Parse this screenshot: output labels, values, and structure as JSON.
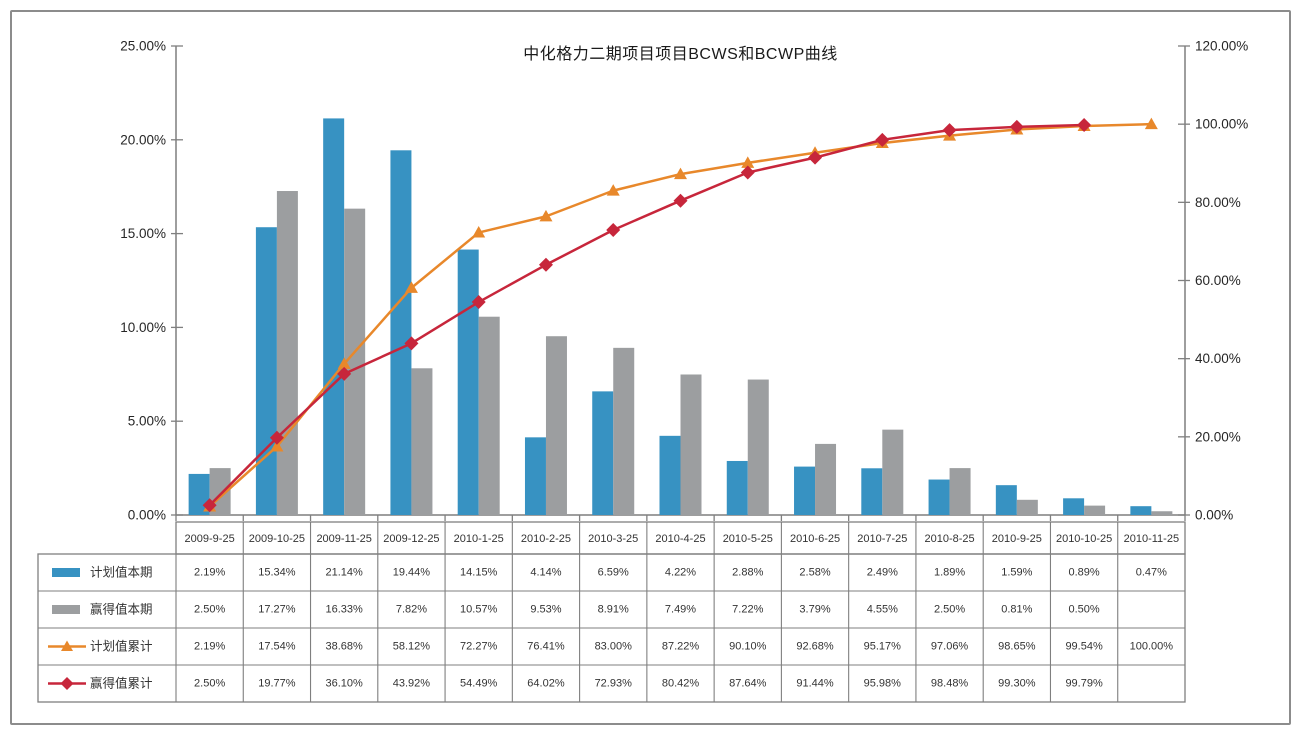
{
  "chart_data": {
    "type": "combo",
    "title": "中化格力二期项目项目BCWS和BCWP曲线",
    "categories": [
      "2009-9-25",
      "2009-10-25",
      "2009-11-25",
      "2009-12-25",
      "2010-1-25",
      "2010-2-25",
      "2010-3-25",
      "2010-4-25",
      "2010-5-25",
      "2010-6-25",
      "2010-7-25",
      "2010-8-25",
      "2010-9-25",
      "2010-10-25",
      "2010-11-25"
    ],
    "series": [
      {
        "key": "planned-current",
        "name": "计划值本期",
        "type": "bar",
        "axis": "left",
        "color": "#3792C2",
        "values": [
          2.19,
          15.34,
          21.14,
          19.44,
          14.15,
          4.14,
          6.59,
          4.22,
          2.88,
          2.58,
          2.49,
          1.89,
          1.59,
          0.89,
          0.47
        ],
        "labels": [
          "2.19%",
          "15.34%",
          "21.14%",
          "19.44%",
          "14.15%",
          "4.14%",
          "6.59%",
          "4.22%",
          "2.88%",
          "2.58%",
          "2.49%",
          "1.89%",
          "1.59%",
          "0.89%",
          "0.47%"
        ]
      },
      {
        "key": "earned-current",
        "name": "赢得值本期",
        "type": "bar",
        "axis": "left",
        "color": "#9C9EA0",
        "values": [
          2.5,
          17.27,
          16.33,
          7.82,
          10.57,
          9.53,
          8.91,
          7.49,
          7.22,
          3.79,
          4.55,
          2.5,
          0.81,
          0.5,
          0.2
        ],
        "labels": [
          "2.50%",
          "17.27%",
          "16.33%",
          "7.82%",
          "10.57%",
          "9.53%",
          "8.91%",
          "7.49%",
          "7.22%",
          "3.79%",
          "4.55%",
          "2.50%",
          "0.81%",
          "0.50%",
          ""
        ]
      },
      {
        "key": "planned-cumulative",
        "name": "计划值累计",
        "type": "line",
        "marker": "triangle",
        "axis": "right",
        "color": "#E8882B",
        "values": [
          2.19,
          17.54,
          38.68,
          58.12,
          72.27,
          76.41,
          83.0,
          87.22,
          90.1,
          92.68,
          95.17,
          97.06,
          98.65,
          99.54,
          100.0
        ],
        "labels": [
          "2.19%",
          "17.54%",
          "38.68%",
          "58.12%",
          "72.27%",
          "76.41%",
          "83.00%",
          "87.22%",
          "90.10%",
          "92.68%",
          "95.17%",
          "97.06%",
          "98.65%",
          "99.54%",
          "100.00%"
        ]
      },
      {
        "key": "earned-cumulative",
        "name": "赢得值累计",
        "type": "line",
        "marker": "diamond",
        "axis": "right",
        "color": "#C7263B",
        "values": [
          2.5,
          19.77,
          36.1,
          43.92,
          54.49,
          64.02,
          72.93,
          80.42,
          87.64,
          91.44,
          95.98,
          98.48,
          99.3,
          99.79,
          null
        ],
        "labels": [
          "2.50%",
          "19.77%",
          "36.10%",
          "43.92%",
          "54.49%",
          "64.02%",
          "72.93%",
          "80.42%",
          "87.64%",
          "91.44%",
          "95.98%",
          "98.48%",
          "99.30%",
          "99.79%",
          ""
        ]
      }
    ],
    "left_axis": {
      "min": 0,
      "max": 25,
      "ticks": [
        "0.00%",
        "5.00%",
        "10.00%",
        "15.00%",
        "20.00%",
        "25.00%"
      ]
    },
    "right_axis": {
      "min": 0,
      "max": 120,
      "ticks": [
        "0.00%",
        "20.00%",
        "40.00%",
        "60.00%",
        "80.00%",
        "100.00%",
        "120.00%"
      ]
    },
    "grid": false,
    "legend_position": "table-left-column",
    "colors": {
      "axis": "#7F7F7F",
      "table_border": "#7F7F7F",
      "frame": "#8C8C8C",
      "text": "#333333",
      "tick_text": "#262626"
    }
  }
}
